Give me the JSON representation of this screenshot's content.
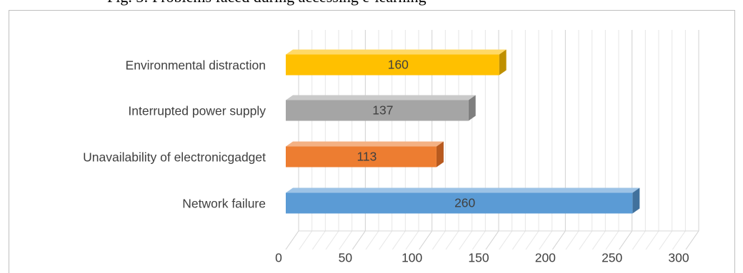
{
  "page": {
    "top_text": "Fig. 3: Problems faced during accessing e-learning"
  },
  "chart_data": {
    "type": "bar",
    "orientation": "horizontal",
    "style": "3d",
    "categories": [
      "Environmental distraction",
      "Interrupted power supply",
      "Unavailability of electronicgadget",
      "Network failure"
    ],
    "values": [
      160,
      137,
      113,
      260
    ],
    "colors": [
      "#FFC000",
      "#A5A5A5",
      "#ED7D31",
      "#5B9BD5"
    ],
    "side_colors": [
      "#BF9000",
      "#7F7F7F",
      "#B85A1F",
      "#41719C"
    ],
    "top_colors": [
      "#FFD966",
      "#C9C9C9",
      "#F4B183",
      "#9DC3E6"
    ],
    "xlim": [
      0,
      300
    ],
    "xticks": [
      0,
      50,
      100,
      150,
      200,
      250,
      300
    ],
    "title": "",
    "xlabel": "",
    "ylabel": "",
    "grid": true,
    "legend": "none"
  }
}
